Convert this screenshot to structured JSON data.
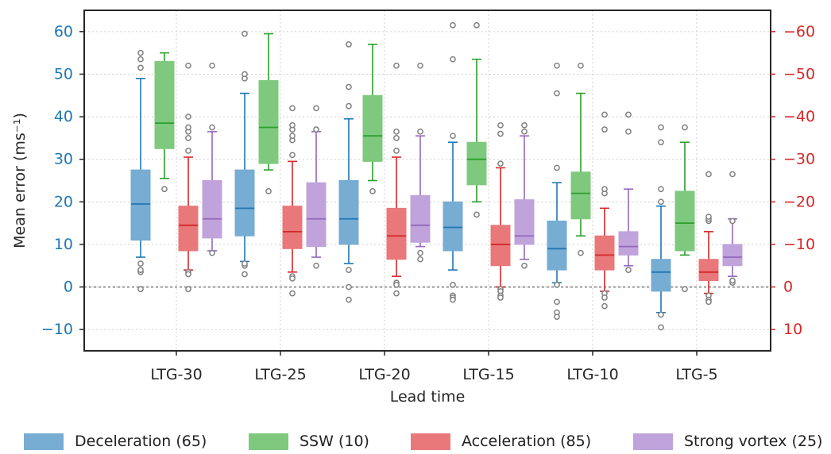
{
  "chart_data": {
    "type": "boxplot",
    "xlabel": "Lead time",
    "ylabel": "Mean error (ms⁻¹)",
    "ylim": [
      -15,
      65
    ],
    "yticks": [
      -10,
      0,
      10,
      20,
      30,
      40,
      50,
      60
    ],
    "right_axis_ticks": [
      "10",
      "0",
      "−10",
      "−20",
      "−30",
      "−40",
      "−50",
      "−60"
    ],
    "reference_line": 0,
    "grid": true,
    "legend_position": "bottom",
    "colors": {
      "left_axis": "#1f77b4",
      "right_axis": "#d62728",
      "outlier": "#808080",
      "reference": "#999999"
    },
    "categories": [
      "LTG-30",
      "LTG-25",
      "LTG-20",
      "LTG-15",
      "LTG-10",
      "LTG-5"
    ],
    "series": [
      {
        "name": "Deceleration (65)",
        "fill": "#77acd3",
        "line": "#1f77b4",
        "boxes": [
          {
            "q1": 11,
            "med": 19.5,
            "q3": 27.5,
            "wlo": 7,
            "whi": 49,
            "fliers": [
              3.5,
              4,
              5.5,
              -0.5,
              51.5,
              53.5,
              55
            ]
          },
          {
            "q1": 12,
            "med": 18.5,
            "q3": 27.5,
            "wlo": 6,
            "whi": 45.5,
            "fliers": [
              3,
              5,
              5.5,
              49,
              50,
              59.5
            ]
          },
          {
            "q1": 10,
            "med": 16,
            "q3": 25,
            "wlo": 5.5,
            "whi": 39.5,
            "fliers": [
              4,
              0,
              -3,
              42.5,
              47,
              57
            ]
          },
          {
            "q1": 8.5,
            "med": 14,
            "q3": 20,
            "wlo": 4,
            "whi": 34,
            "fliers": [
              0.5,
              -2,
              -2.5,
              -3,
              35.5,
              53.5,
              61.5
            ]
          },
          {
            "q1": 4,
            "med": 9,
            "q3": 15.5,
            "wlo": 1,
            "whi": 24.5,
            "fliers": [
              0.5,
              -3.5,
              -6,
              -7,
              28,
              45.5,
              52
            ]
          },
          {
            "q1": -1,
            "med": 3.5,
            "q3": 6.5,
            "wlo": -6,
            "whi": 19,
            "fliers": [
              -6.5,
              -9.5,
              20,
              23,
              34,
              37.5
            ]
          }
        ]
      },
      {
        "name": "SSW (10)",
        "fill": "#7fc97f",
        "line": "#2ca02c",
        "boxes": [
          {
            "q1": 32.5,
            "med": 38.5,
            "q3": 53,
            "wlo": 25.5,
            "whi": 55,
            "fliers": [
              23
            ]
          },
          {
            "q1": 29,
            "med": 37.5,
            "q3": 48.5,
            "wlo": 27.5,
            "whi": 59.5,
            "fliers": [
              22.5
            ]
          },
          {
            "q1": 29.5,
            "med": 35.5,
            "q3": 45,
            "wlo": 25,
            "whi": 57,
            "fliers": [
              22.5
            ]
          },
          {
            "q1": 24,
            "med": 30,
            "q3": 34,
            "wlo": 20,
            "whi": 53.5,
            "fliers": [
              17,
              61.5
            ]
          },
          {
            "q1": 16,
            "med": 22,
            "q3": 27,
            "wlo": 12,
            "whi": 45.5,
            "fliers": [
              8,
              52
            ]
          },
          {
            "q1": 8.5,
            "med": 15,
            "q3": 22.5,
            "wlo": 7.5,
            "whi": 34,
            "fliers": [
              -0.5,
              37.5
            ]
          }
        ]
      },
      {
        "name": "Acceleration (85)",
        "fill": "#e8787a",
        "line": "#d62728",
        "boxes": [
          {
            "q1": 8.5,
            "med": 14.5,
            "q3": 19,
            "wlo": 4,
            "whi": 30.5,
            "fliers": [
              3.5,
              3,
              -0.5,
              32,
              35,
              36.5,
              37.5,
              40,
              52
            ]
          },
          {
            "q1": 9,
            "med": 13,
            "q3": 19,
            "wlo": 3.5,
            "whi": 29.5,
            "fliers": [
              2.5,
              2,
              -1.5,
              31,
              34.5,
              35.5,
              37,
              38,
              42
            ]
          },
          {
            "q1": 6.5,
            "med": 12,
            "q3": 18.5,
            "wlo": 2.5,
            "whi": 30.5,
            "fliers": [
              1,
              0.5,
              -1.5,
              32,
              35,
              36.5,
              52
            ]
          },
          {
            "q1": 5,
            "med": 10,
            "q3": 14.5,
            "wlo": 0,
            "whi": 28,
            "fliers": [
              -0.5,
              -1,
              -2,
              -2.5,
              29,
              36,
              38
            ]
          },
          {
            "q1": 4,
            "med": 7.5,
            "q3": 12,
            "wlo": -1,
            "whi": 18.5,
            "fliers": [
              -1.5,
              -2.5,
              -4.5,
              22,
              23,
              37,
              40.5
            ]
          },
          {
            "q1": 1.5,
            "med": 3.5,
            "q3": 6.5,
            "wlo": -1.5,
            "whi": 13,
            "fliers": [
              -2,
              -3,
              -3.5,
              15.5,
              16,
              16.5,
              26.5
            ]
          }
        ]
      },
      {
        "name": "Strong vortex (25)",
        "fill": "#c0a3da",
        "line": "#9467bd",
        "boxes": [
          {
            "q1": 11.5,
            "med": 16,
            "q3": 25,
            "wlo": 8.5,
            "whi": 36.5,
            "fliers": [
              8,
              37.5,
              52
            ]
          },
          {
            "q1": 9.5,
            "med": 16,
            "q3": 24.5,
            "wlo": 7,
            "whi": 36.5,
            "fliers": [
              5,
              37,
              42
            ]
          },
          {
            "q1": 10.5,
            "med": 14.5,
            "q3": 21.5,
            "wlo": 9.5,
            "whi": 35.5,
            "fliers": [
              6.5,
              8,
              36.5,
              52
            ]
          },
          {
            "q1": 10,
            "med": 12,
            "q3": 20.5,
            "wlo": 6.5,
            "whi": 35.5,
            "fliers": [
              5,
              36.5,
              38
            ]
          },
          {
            "q1": 7.5,
            "med": 9.5,
            "q3": 13,
            "wlo": 5,
            "whi": 23,
            "fliers": [
              4,
              36.5,
              40.5
            ]
          },
          {
            "q1": 5,
            "med": 7,
            "q3": 10,
            "wlo": 2.5,
            "whi": 16,
            "fliers": [
              1,
              1.5,
              15.5,
              26.5
            ]
          }
        ]
      }
    ]
  }
}
